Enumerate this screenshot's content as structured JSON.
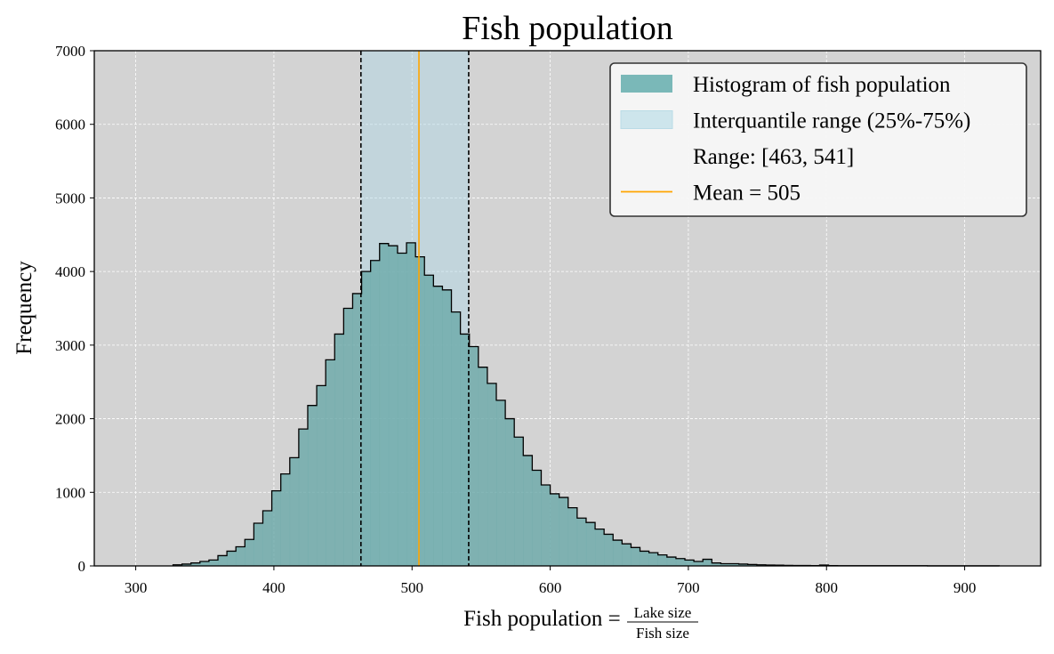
{
  "chart_data": {
    "type": "histogram",
    "title": "Fish population",
    "xlabel": "Fish population = ",
    "xlabel_fraction": {
      "numerator": "Lake size",
      "denominator": "Fish size"
    },
    "ylabel": "Frequency",
    "xlim": [
      270,
      955
    ],
    "ylim": [
      0,
      7000
    ],
    "x_ticks": [
      300,
      400,
      500,
      600,
      700,
      800,
      900
    ],
    "y_ticks": [
      0,
      1000,
      2000,
      3000,
      4000,
      5000,
      6000,
      7000
    ],
    "grid": true,
    "legend_position": "top-right",
    "bin_edges": [
      327,
      333.5,
      340,
      346.5,
      353,
      359.5,
      366,
      372.5,
      379,
      385.5,
      392,
      398.5,
      405,
      411.5,
      418,
      424.5,
      431,
      437.5,
      444,
      450.5,
      457,
      463.5,
      470,
      476.5,
      483,
      489.5,
      496,
      502.5,
      509,
      515.5,
      522,
      528.5,
      535,
      541.5,
      548,
      554.5,
      561,
      567.5,
      574,
      580.5,
      587,
      593.5,
      600,
      606.5,
      613,
      619.5,
      626,
      632.5,
      639,
      645.5,
      652,
      658.5,
      665,
      671.5,
      678,
      684.5,
      691,
      697.5,
      704,
      710.5,
      717,
      723.5,
      730,
      736.5,
      743,
      749.5,
      756,
      762.5,
      769,
      775.5,
      782,
      788.5,
      795,
      801.5,
      808,
      814.5,
      821,
      827.5,
      834,
      840.5,
      847,
      853.5,
      860,
      866.5,
      873,
      879.5,
      886,
      892.5,
      899,
      905.5,
      912,
      918.5,
      925
    ],
    "counts": [
      15,
      25,
      40,
      60,
      80,
      140,
      200,
      260,
      360,
      580,
      750,
      1020,
      1250,
      1470,
      1860,
      2180,
      2450,
      2800,
      3150,
      3500,
      3700,
      4000,
      4150,
      4380,
      4350,
      4250,
      4390,
      4200,
      3950,
      3800,
      3750,
      3450,
      3150,
      2980,
      2700,
      2480,
      2250,
      2000,
      1750,
      1500,
      1300,
      1100,
      980,
      930,
      790,
      650,
      590,
      500,
      430,
      350,
      300,
      250,
      200,
      180,
      150,
      120,
      100,
      80,
      60,
      90,
      40,
      30,
      30,
      25,
      20,
      15,
      12,
      10,
      8,
      6,
      5,
      4,
      12,
      4,
      3,
      3,
      3,
      2,
      2,
      2,
      2,
      2,
      2,
      2,
      1,
      1,
      1,
      1,
      1,
      1,
      1,
      1
    ],
    "iqr": [
      463,
      541
    ],
    "mean": 505,
    "legend": [
      {
        "label": "Histogram of fish population",
        "kind": "patch",
        "color": "#7ab8b8"
      },
      {
        "label": "Interquantile range (25%-75%)",
        "kind": "patch",
        "color": "#cde5ec"
      },
      {
        "label": "Range: [463, 541]",
        "kind": "none"
      },
      {
        "label": "Mean = 505",
        "kind": "line",
        "color": "#ffa500"
      }
    ],
    "colors": {
      "plot_background": "#d3d3d3",
      "histogram_fill": "#6da9a9",
      "iqr_overlay": "#add8e6",
      "mean_line": "#ffa500",
      "outline": "#000000"
    }
  }
}
